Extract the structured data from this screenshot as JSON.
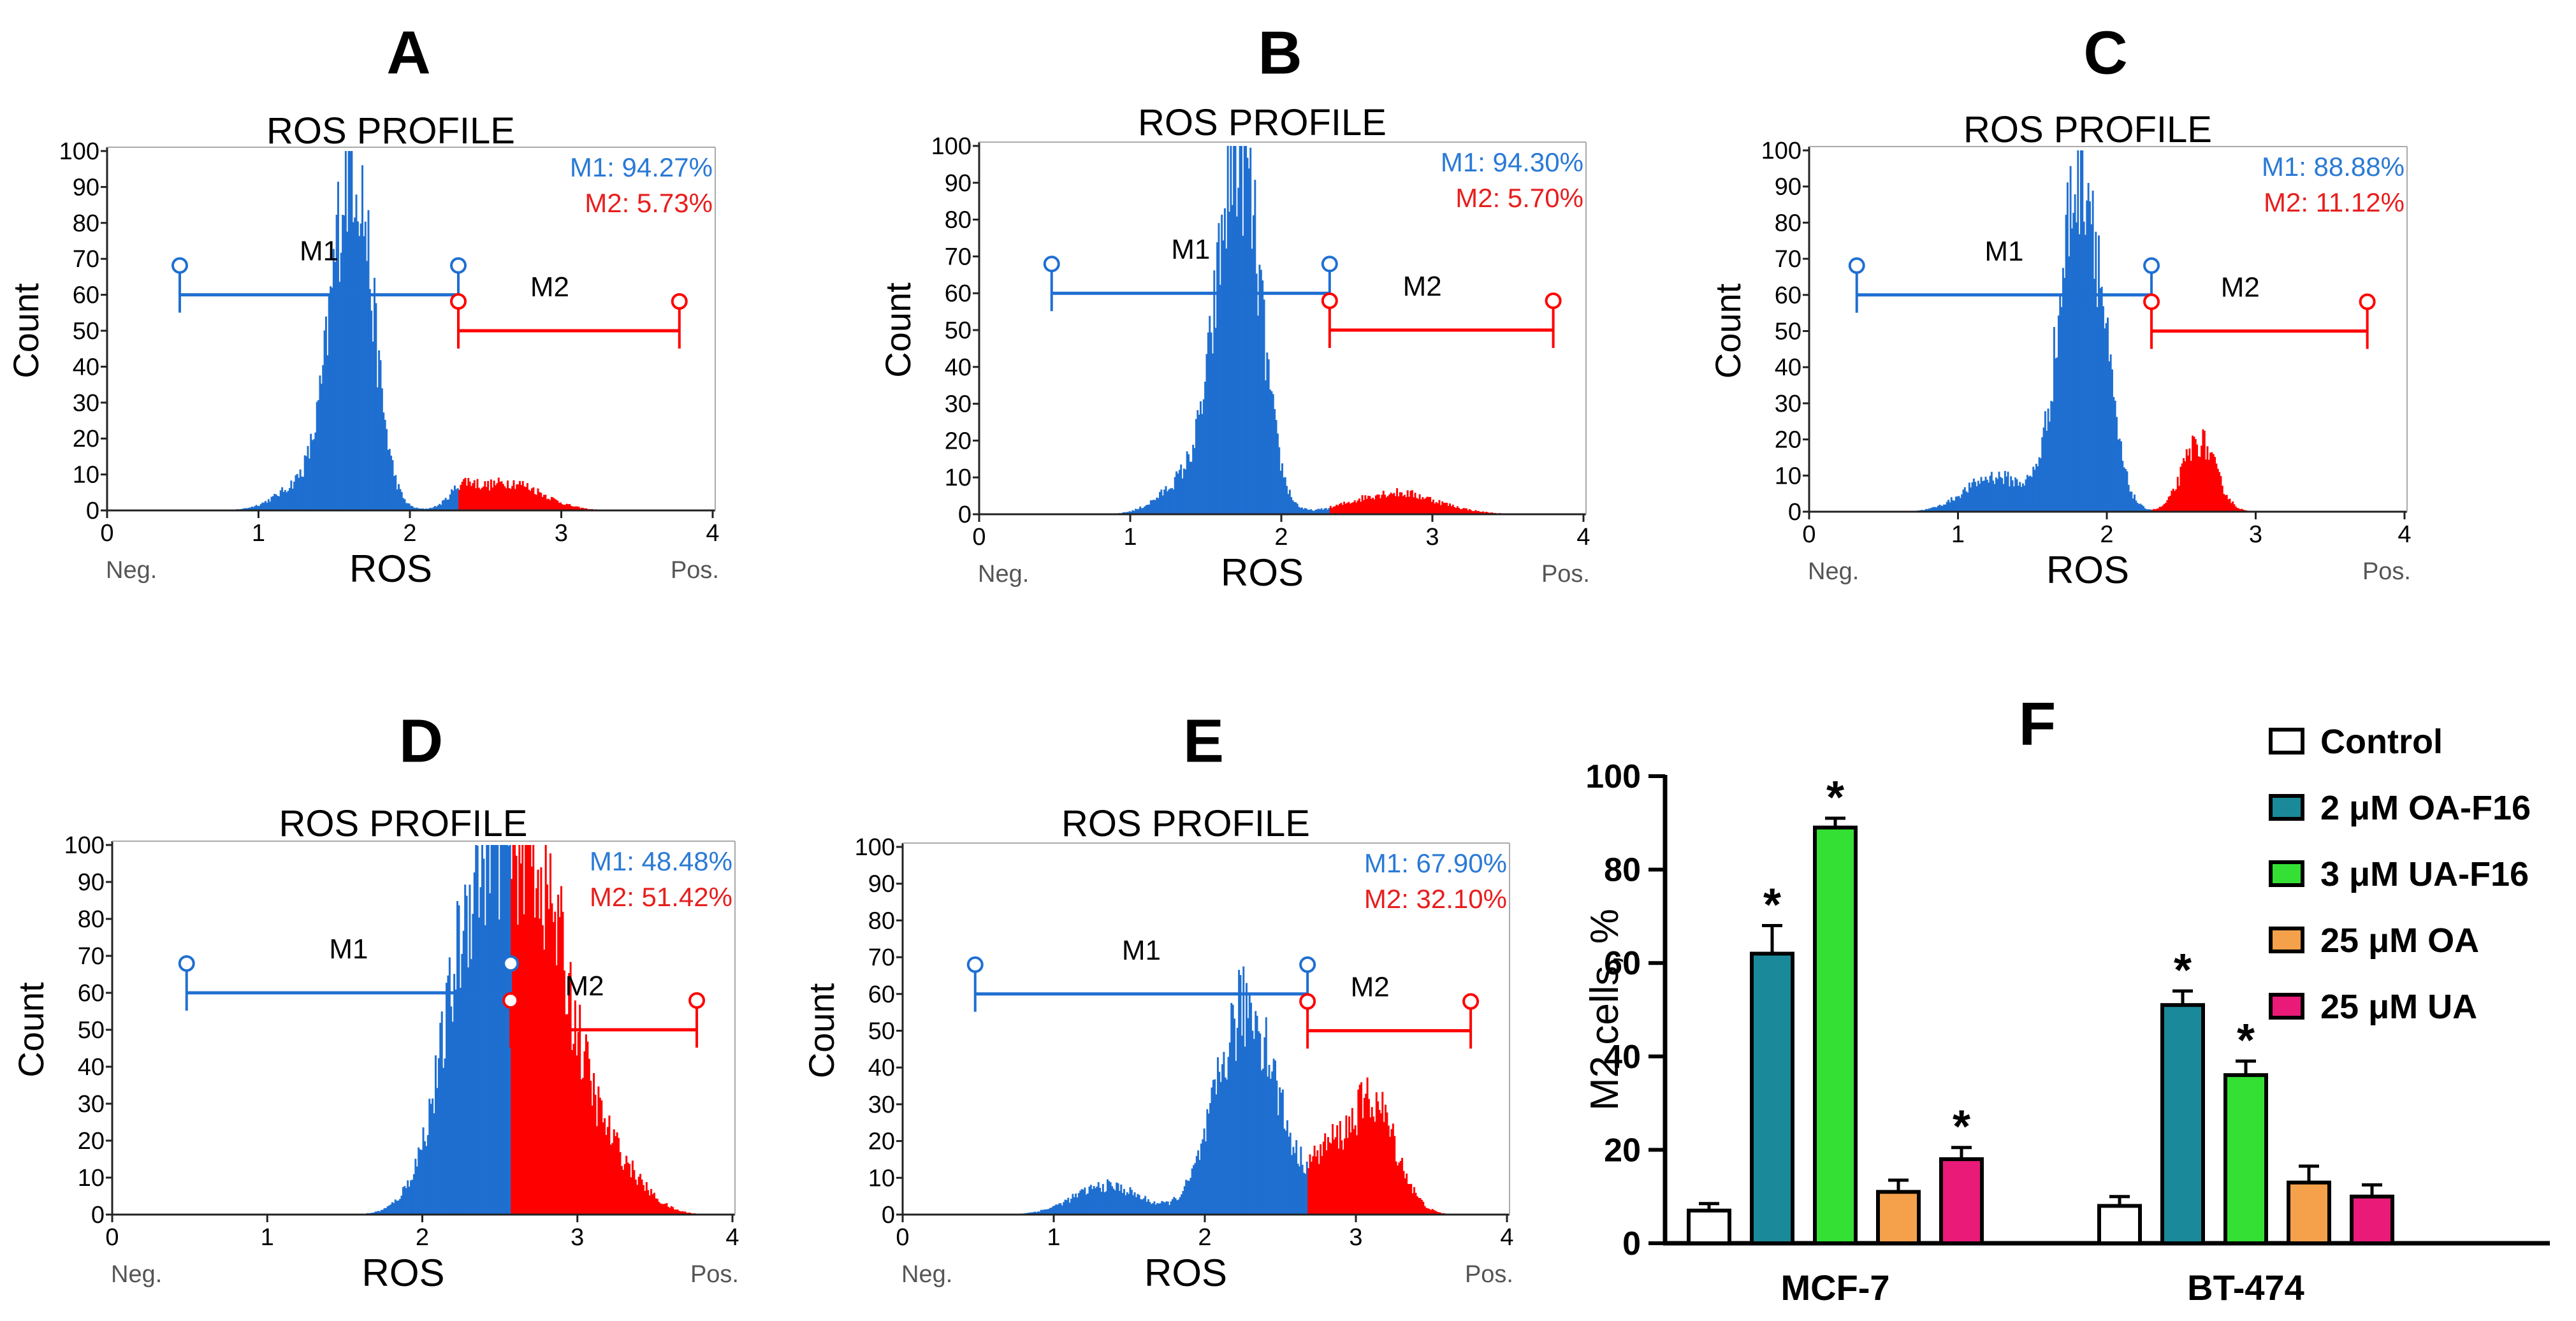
{
  "colors": {
    "m1": "#1f6fd1",
    "m2": "#ff0000",
    "m1_text": "#2a7ad5",
    "m2_text": "#e81e1e",
    "control": "#ffffff",
    "oa_f16": "#1a8a9a",
    "ua_f16": "#33e033",
    "oa": "#f5a04b",
    "ua": "#ea1a78"
  },
  "histograms": [
    {
      "letter": "A",
      "title": "ROS PROFILE",
      "xlabel": "ROS",
      "ylabel": "Count",
      "x_min_label": "Neg.",
      "x_max_label": "Pos.",
      "x_ticks": [
        "0",
        "1",
        "2",
        "3",
        "4"
      ],
      "y_ticks": [
        "0",
        "10",
        "20",
        "30",
        "40",
        "50",
        "60",
        "70",
        "80",
        "90",
        "100"
      ],
      "xlim": [
        0,
        4
      ],
      "ylim": [
        0,
        100
      ],
      "m1_stat": "M1: 94.27%",
      "m2_stat": "M2: 5.73%",
      "gate_m1_name": "M1",
      "gate_m2_name": "M2",
      "gate_m1": [
        0.48,
        2.32
      ],
      "gate_m1_y": 60,
      "gate_m2": [
        2.32,
        3.78
      ],
      "gate_m2_y": 50,
      "boundary": 2.32,
      "peaks": [
        {
          "mu": 1.62,
          "sigma": 0.13,
          "amp": 100
        },
        {
          "mu": 1.32,
          "sigma": 0.18,
          "amp": 8
        },
        {
          "mu": 2.35,
          "sigma": 0.08,
          "amp": 5
        },
        {
          "mu": 2.65,
          "sigma": 0.22,
          "amp": 8
        }
      ]
    },
    {
      "letter": "B",
      "title": "ROS PROFILE",
      "xlabel": "ROS",
      "ylabel": "Count",
      "x_min_label": "Neg.",
      "x_max_label": "Pos.",
      "x_ticks": [
        "0",
        "1",
        "2",
        "3",
        "4"
      ],
      "y_ticks": [
        "0",
        "10",
        "20",
        "30",
        "40",
        "50",
        "60",
        "70",
        "80",
        "90",
        "100"
      ],
      "xlim": [
        0,
        4
      ],
      "ylim": [
        0,
        100
      ],
      "m1_stat": "M1: 94.30%",
      "m2_stat": "M2: 5.70%",
      "gate_m1_name": "M1",
      "gate_m2_name": "M2",
      "gate_m1": [
        0.48,
        2.32
      ],
      "gate_m1_y": 60,
      "gate_m2": [
        2.32,
        3.8
      ],
      "gate_m2_y": 50,
      "boundary": 2.32,
      "peaks": [
        {
          "mu": 1.72,
          "sigma": 0.14,
          "amp": 100
        },
        {
          "mu": 1.4,
          "sigma": 0.18,
          "amp": 10
        },
        {
          "mu": 2.75,
          "sigma": 0.28,
          "amp": 6
        }
      ]
    },
    {
      "letter": "C",
      "title": "ROS PROFILE",
      "xlabel": "ROS",
      "ylabel": "Count",
      "x_min_label": "Neg.",
      "x_max_label": "Pos.",
      "x_ticks": [
        "0",
        "1",
        "2",
        "3",
        "4"
      ],
      "y_ticks": [
        "0",
        "10",
        "20",
        "30",
        "40",
        "50",
        "60",
        "70",
        "80",
        "90",
        "100"
      ],
      "xlim": [
        0,
        4
      ],
      "ylim": [
        0,
        100
      ],
      "m1_stat": "M1: 88.88%",
      "m2_stat": "M2: 11.12%",
      "gate_m1_name": "M1",
      "gate_m2_name": "M2",
      "gate_m1": [
        0.32,
        2.3
      ],
      "gate_m1_y": 60,
      "gate_m2": [
        2.3,
        3.75
      ],
      "gate_m2_y": 50,
      "boundary": 2.3,
      "peaks": [
        {
          "mu": 1.83,
          "sigma": 0.14,
          "amp": 100
        },
        {
          "mu": 1.25,
          "sigma": 0.2,
          "amp": 10
        },
        {
          "mu": 2.62,
          "sigma": 0.11,
          "amp": 20
        }
      ]
    },
    {
      "letter": "D",
      "title": "ROS PROFILE",
      "xlabel": "ROS",
      "ylabel": "Count",
      "x_min_label": "Neg.",
      "x_max_label": "Pos.",
      "x_ticks": [
        "0",
        "1",
        "2",
        "3",
        "4"
      ],
      "y_ticks": [
        "0",
        "10",
        "20",
        "30",
        "40",
        "50",
        "60",
        "70",
        "80",
        "90",
        "100"
      ],
      "xlim": [
        0,
        4
      ],
      "ylim": [
        0,
        100
      ],
      "m1_stat": "M1: 48.48%",
      "m2_stat": "M2: 51.42%",
      "gate_m1_name": "M1",
      "gate_m2_name": "M2",
      "gate_m1": [
        0.48,
        2.57
      ],
      "gate_m1_y": 60,
      "gate_m2": [
        2.57,
        3.77
      ],
      "gate_m2_y": 50,
      "boundary": 2.57,
      "peaks": [
        {
          "mu": 2.38,
          "sigma": 0.22,
          "amp": 90
        },
        {
          "mu": 2.78,
          "sigma": 0.2,
          "amp": 75
        },
        {
          "mu": 3.2,
          "sigma": 0.2,
          "amp": 15
        }
      ]
    },
    {
      "letter": "E",
      "title": "ROS PROFILE",
      "xlabel": "ROS",
      "ylabel": "Count",
      "x_min_label": "Neg.",
      "x_max_label": "Pos.",
      "x_ticks": [
        "0",
        "1",
        "2",
        "3",
        "4"
      ],
      "y_ticks": [
        "0",
        "10",
        "20",
        "30",
        "40",
        "50",
        "60",
        "70",
        "80",
        "90",
        "100"
      ],
      "xlim": [
        0,
        4
      ],
      "ylim": [
        0,
        100
      ],
      "m1_stat": "M1: 67.90%",
      "m2_stat": "M2: 32.10%",
      "gate_m1_name": "M1",
      "gate_m2_name": "M2",
      "gate_m1": [
        0.48,
        2.68
      ],
      "gate_m1_y": 60,
      "gate_m2": [
        2.68,
        3.76
      ],
      "gate_m2_y": 50,
      "boundary": 2.68,
      "peaks": [
        {
          "mu": 2.28,
          "sigma": 0.2,
          "amp": 58
        },
        {
          "mu": 1.35,
          "sigma": 0.22,
          "amp": 8
        },
        {
          "mu": 3.1,
          "sigma": 0.16,
          "amp": 32
        },
        {
          "mu": 2.8,
          "sigma": 0.1,
          "amp": 12
        }
      ]
    }
  ],
  "chart_data": {
    "type": "bar",
    "letter": "F",
    "title": "",
    "xlabel": "",
    "ylabel": "M2 cells, %",
    "ylim": [
      0,
      100
    ],
    "y_ticks": [
      "0",
      "20",
      "40",
      "60",
      "80",
      "100"
    ],
    "categories": [
      "MCF-7",
      "BT-474"
    ],
    "significance_marker": "*",
    "series": [
      {
        "name": "Control",
        "color_key": "control",
        "values": [
          7,
          8
        ],
        "errors": [
          1.5,
          2
        ],
        "significant": [
          false,
          false
        ]
      },
      {
        "name": "2 μM OA-F16",
        "color_key": "oa_f16",
        "values": [
          62,
          51
        ],
        "errors": [
          6,
          3
        ],
        "significant": [
          true,
          true
        ]
      },
      {
        "name": "3 μM UA-F16",
        "color_key": "ua_f16",
        "values": [
          89,
          36
        ],
        "errors": [
          2,
          3
        ],
        "significant": [
          true,
          true
        ]
      },
      {
        "name": "25 μM OA",
        "color_key": "oa",
        "values": [
          11,
          13
        ],
        "errors": [
          2.5,
          3.5
        ],
        "significant": [
          false,
          false
        ]
      },
      {
        "name": "25 μM UA",
        "color_key": "ua",
        "values": [
          18,
          10
        ],
        "errors": [
          2.5,
          2.5
        ],
        "significant": [
          true,
          false
        ]
      }
    ]
  }
}
